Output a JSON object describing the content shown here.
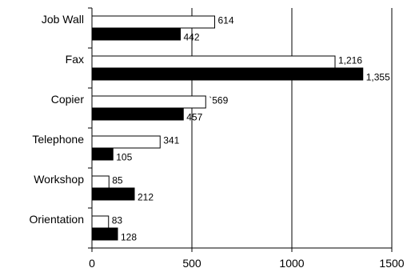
{
  "chart_data": {
    "type": "bar",
    "orientation": "horizontal",
    "categories": [
      "Job Wall",
      "Fax",
      "Copier",
      "Telephone",
      "Workshop",
      "Orientation"
    ],
    "series": [
      {
        "color": "#ffffff",
        "values": [
          614,
          1216,
          569,
          341,
          85,
          83
        ],
        "labels": [
          "614",
          "1,216",
          "`569",
          "341",
          "85",
          "83"
        ]
      },
      {
        "color": "#000000",
        "values": [
          442,
          1355,
          457,
          105,
          212,
          128
        ],
        "labels": [
          "442",
          "1,355",
          "457",
          "105",
          "212",
          "128"
        ]
      }
    ],
    "xlim": [
      0,
      1500
    ],
    "xticks": [
      0,
      500,
      1000,
      1500
    ],
    "xtick_labels": [
      "0",
      "500",
      "1000",
      "1500"
    ],
    "grid": "vertical",
    "legend": "none",
    "title": "",
    "xlabel": "",
    "ylabel": ""
  }
}
